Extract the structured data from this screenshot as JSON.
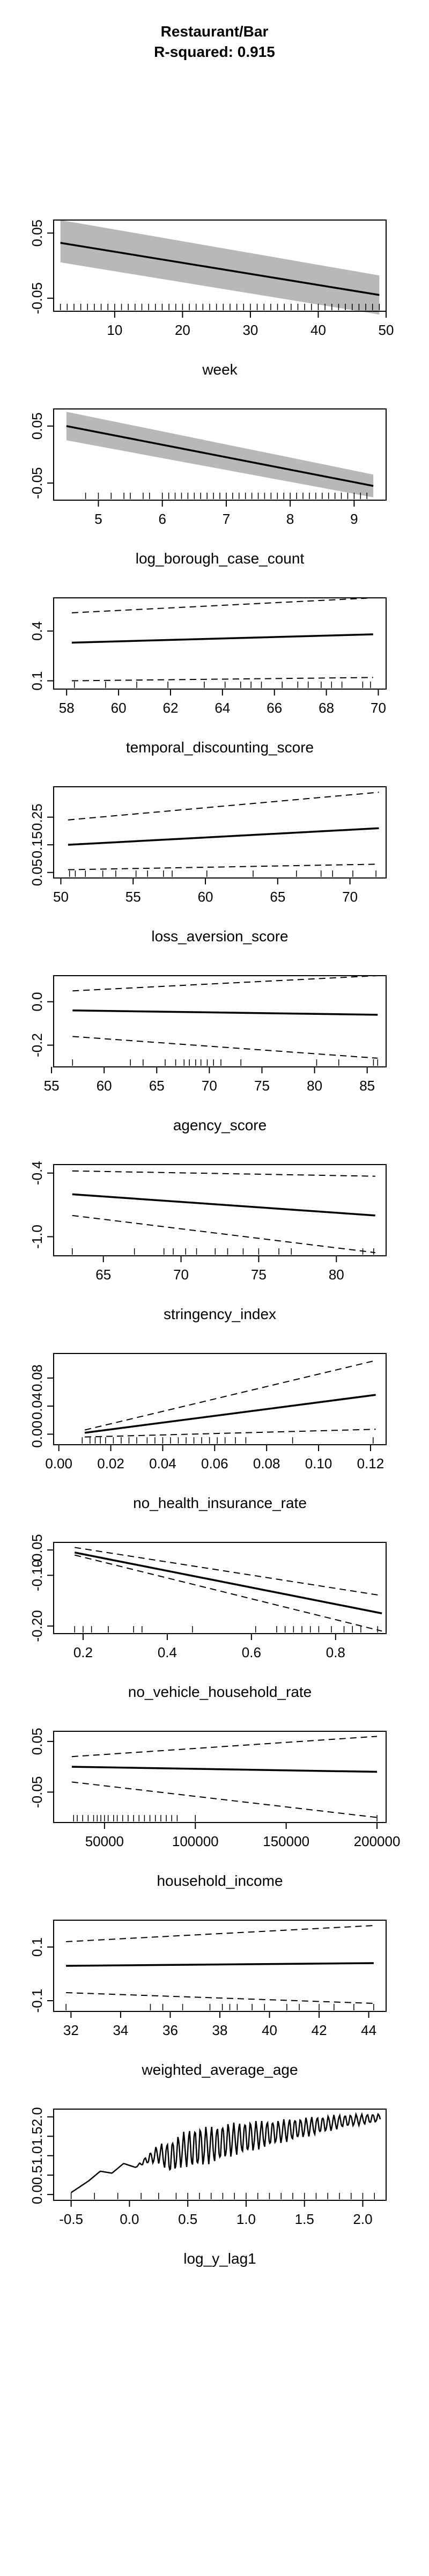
{
  "figure": {
    "title": "Restaurant/Bar",
    "subtitle": "R-squared: 0.915"
  },
  "chart_data": [
    {
      "type": "line",
      "xlabel": "week",
      "ylabel": "",
      "xlim": [
        1,
        50
      ],
      "ylim": [
        -0.07,
        0.07
      ],
      "xticks": [
        10,
        20,
        30,
        40,
        50
      ],
      "yticks": [
        -0.05,
        0.05
      ],
      "x": [
        2,
        49
      ],
      "fit": [
        0.035,
        -0.045
      ],
      "band_lower": [
        0.005,
        -0.075
      ],
      "band_upper": [
        0.07,
        -0.015
      ],
      "band_style": "shaded",
      "rug": [
        2,
        3,
        4,
        5,
        6,
        7,
        8,
        9,
        10,
        11,
        12,
        13,
        14,
        15,
        16,
        17,
        18,
        19,
        20,
        21,
        22,
        23,
        24,
        25,
        26,
        27,
        28,
        29,
        30,
        31,
        32,
        33,
        34,
        35,
        36,
        37,
        38,
        39,
        40,
        41,
        42,
        43,
        44,
        45,
        46,
        47,
        48,
        49
      ]
    },
    {
      "type": "line",
      "xlabel": "log_borough_case_count",
      "ylabel": "",
      "xlim": [
        4.3,
        9.5
      ],
      "ylim": [
        -0.08,
        0.08
      ],
      "xticks": [
        5,
        6,
        7,
        8,
        9
      ],
      "yticks": [
        -0.05,
        0.05
      ],
      "x": [
        4.5,
        9.3
      ],
      "fit": [
        0.05,
        -0.055
      ],
      "band_lower": [
        0.025,
        -0.075
      ],
      "band_upper": [
        0.075,
        -0.035
      ],
      "band_style": "shaded",
      "rug": [
        4.8,
        5.0,
        5.2,
        5.4,
        5.5,
        5.7,
        5.8,
        6.0,
        6.1,
        6.2,
        6.3,
        6.4,
        6.5,
        6.6,
        6.7,
        6.8,
        6.9,
        7.0,
        7.1,
        7.2,
        7.3,
        7.4,
        7.5,
        7.6,
        7.7,
        7.8,
        7.9,
        8.0,
        8.1,
        8.2,
        8.3,
        8.4,
        8.5,
        8.6,
        8.7,
        8.8,
        8.9,
        9.0,
        9.1,
        9.2
      ]
    },
    {
      "type": "line",
      "xlabel": "temporal_discounting_score",
      "ylabel": "",
      "xlim": [
        57.5,
        70.3
      ],
      "ylim": [
        0.05,
        0.6
      ],
      "xticks": [
        58,
        60,
        62,
        64,
        66,
        68,
        70
      ],
      "yticks": [
        0.1,
        0.4
      ],
      "x": [
        58.2,
        69.8
      ],
      "fit": [
        0.33,
        0.38
      ],
      "band_lower": [
        0.1,
        0.12
      ],
      "band_upper": [
        0.51,
        0.6
      ],
      "band_style": "dashed",
      "rug": [
        58.3,
        59.5,
        60.7,
        61.9,
        63.3,
        64.1,
        64.7,
        65.1,
        65.5,
        66.3,
        66.9,
        67.3,
        67.8,
        68.2,
        68.6,
        69.4,
        69.7
      ]
    },
    {
      "type": "line",
      "xlabel": "loss_aversion_score",
      "ylabel": "",
      "xlim": [
        49.5,
        72.5
      ],
      "ylim": [
        0.03,
        0.36
      ],
      "xticks": [
        50,
        55,
        60,
        65,
        70
      ],
      "yticks": [
        0.05,
        0.15,
        0.25
      ],
      "x": [
        50.5,
        72
      ],
      "fit": [
        0.15,
        0.21
      ],
      "band_lower": [
        0.06,
        0.08
      ],
      "band_upper": [
        0.24,
        0.34
      ],
      "band_style": "dashed",
      "rug": [
        50.6,
        51.0,
        51.7,
        52.9,
        53.8,
        55.2,
        56.0,
        57.1,
        57.7,
        60.1,
        63.3,
        66.3,
        68.0,
        68.8,
        70.2,
        71.8
      ]
    },
    {
      "type": "line",
      "xlabel": "agency_score",
      "ylabel": "",
      "xlim": [
        55.2,
        86.8
      ],
      "ylim": [
        -0.3,
        0.12
      ],
      "xticks": [
        55,
        60,
        65,
        70,
        75,
        80,
        85
      ],
      "yticks": [
        -0.2,
        0.0
      ],
      "x": [
        57,
        86
      ],
      "fit": [
        -0.04,
        -0.06
      ],
      "band_lower": [
        -0.16,
        -0.26
      ],
      "band_upper": [
        0.05,
        0.12
      ],
      "band_style": "dashed",
      "rug": [
        57.0,
        62.5,
        63.7,
        65.8,
        66.8,
        67.6,
        68.1,
        68.7,
        69.2,
        69.8,
        70.4,
        71.1,
        73.0,
        80.2,
        82.3,
        85.6,
        86.0
      ]
    },
    {
      "type": "line",
      "xlabel": "stringency_index",
      "ylabel": "",
      "xlim": [
        61.8,
        83.2
      ],
      "ylim": [
        -1.18,
        -0.32
      ],
      "xticks": [
        65,
        70,
        75,
        80
      ],
      "yticks": [
        -1.0,
        -0.4
      ],
      "x": [
        63,
        82.5
      ],
      "fit": [
        -0.6,
        -0.8
      ],
      "band_lower": [
        -0.8,
        -1.15
      ],
      "band_upper": [
        -0.38,
        -0.43
      ],
      "band_style": "dashed",
      "rug": [
        63.0,
        67.0,
        68.9,
        69.5,
        70.3,
        71.0,
        72.2,
        73.0,
        74.0,
        75.0,
        76.3,
        77.1,
        81.7,
        82.4
      ]
    },
    {
      "type": "line",
      "xlabel": "no_health_insurance_rate",
      "ylabel": "",
      "xlim": [
        -0.002,
        0.126
      ],
      "ylim": [
        -0.015,
        0.115
      ],
      "xticks": [
        0.0,
        0.02,
        0.04,
        0.06,
        0.08,
        0.1,
        0.12
      ],
      "yticks": [
        0.0,
        0.04,
        0.08
      ],
      "x": [
        0.01,
        0.122
      ],
      "fit": [
        0.002,
        0.056
      ],
      "band_lower": [
        -0.004,
        0.007
      ],
      "band_upper": [
        0.006,
        0.105
      ],
      "band_style": "dashed",
      "rug": [
        0.009,
        0.012,
        0.014,
        0.016,
        0.018,
        0.021,
        0.024,
        0.027,
        0.03,
        0.034,
        0.037,
        0.04,
        0.043,
        0.046,
        0.049,
        0.052,
        0.055,
        0.058,
        0.061,
        0.064,
        0.068,
        0.072,
        0.09,
        0.121
      ]
    },
    {
      "type": "line",
      "xlabel": "no_vehicle_household_rate",
      "ylabel": "",
      "xlim": [
        0.13,
        0.92
      ],
      "ylim": [
        -0.215,
        -0.035
      ],
      "xticks": [
        0.2,
        0.4,
        0.6,
        0.8
      ],
      "yticks": [
        -0.2,
        -0.1,
        -0.05
      ],
      "x": [
        0.18,
        0.91
      ],
      "fit": [
        -0.055,
        -0.175
      ],
      "band_lower": [
        -0.06,
        -0.21
      ],
      "band_upper": [
        -0.045,
        -0.14
      ],
      "band_style": "dashed",
      "rug": [
        0.18,
        0.2,
        0.22,
        0.26,
        0.32,
        0.34,
        0.46,
        0.61,
        0.66,
        0.68,
        0.7,
        0.72,
        0.74,
        0.76,
        0.79,
        0.82,
        0.84,
        0.86,
        0.9
      ]
    },
    {
      "type": "line",
      "xlabel": "household_income",
      "ylabel": "",
      "xlim": [
        22000,
        205000
      ],
      "ylim": [
        -0.11,
        0.07
      ],
      "xticks": [
        50000,
        100000,
        150000,
        200000
      ],
      "yticks": [
        -0.05,
        0.05
      ],
      "x": [
        32000,
        200000
      ],
      "fit": [
        0.0,
        -0.01
      ],
      "band_lower": [
        -0.03,
        -0.1
      ],
      "band_upper": [
        0.02,
        0.06
      ],
      "band_style": "dashed",
      "rug": [
        33000,
        35000,
        38000,
        41000,
        44000,
        46000,
        48000,
        50000,
        52000,
        55000,
        57000,
        60000,
        63000,
        66000,
        69000,
        72000,
        75000,
        78000,
        81000,
        84000,
        87000,
        90000,
        100000,
        200000
      ]
    },
    {
      "type": "line",
      "xlabel": "weighted_average_age",
      "ylabel": "",
      "xlim": [
        31.3,
        44.7
      ],
      "ylim": [
        -0.14,
        0.2
      ],
      "xticks": [
        32,
        34,
        36,
        38,
        40,
        42,
        44
      ],
      "yticks": [
        -0.1,
        0.1
      ],
      "x": [
        31.8,
        44.2
      ],
      "fit": [
        0.03,
        0.04
      ],
      "band_lower": [
        -0.07,
        -0.11
      ],
      "band_upper": [
        0.12,
        0.18
      ],
      "band_style": "dashed",
      "rug": [
        31.8,
        35.2,
        35.7,
        36.5,
        37.6,
        38.1,
        38.4,
        38.7,
        39.3,
        39.8,
        40.7,
        41.2,
        42.0,
        42.6,
        43.4,
        44.2
      ]
    },
    {
      "type": "line",
      "xlabel": "log_y_lag1",
      "ylabel": "",
      "xlim": [
        -0.65,
        2.2
      ],
      "ylim": [
        -0.15,
        2.2
      ],
      "xticks": [
        -0.5,
        0.0,
        0.5,
        1.0,
        1.5,
        2.0
      ],
      "yticks": [
        0.0,
        0.5,
        1.0,
        1.5,
        2.0
      ],
      "x": [
        -0.5,
        -0.35,
        -0.25,
        -0.15,
        -0.05,
        0.05,
        0.15,
        0.25,
        0.35,
        0.45,
        0.55,
        0.65,
        0.75,
        0.85,
        0.95,
        1.05,
        1.15,
        1.25,
        1.35,
        1.45,
        1.55,
        1.65,
        1.75,
        1.85,
        1.95,
        2.05,
        2.15
      ],
      "fit": [
        0.05,
        0.35,
        0.6,
        0.55,
        0.8,
        0.7,
        0.9,
        1.05,
        0.95,
        1.15,
        1.2,
        1.25,
        1.3,
        1.4,
        1.45,
        1.5,
        1.55,
        1.6,
        1.65,
        1.7,
        1.75,
        1.8,
        1.85,
        1.9,
        1.92,
        1.95,
        1.98
      ],
      "noise_amplitude": [
        0,
        0,
        0,
        0,
        0,
        0,
        0.1,
        0.25,
        0.4,
        0.45,
        0.5,
        0.5,
        0.45,
        0.45,
        0.4,
        0.4,
        0.35,
        0.3,
        0.3,
        0.25,
        0.25,
        0.2,
        0.2,
        0.15,
        0.15,
        0.12,
        0.1
      ],
      "band_style": "none",
      "rug": [
        -0.5,
        -0.3,
        -0.1,
        0.1,
        0.25,
        0.4,
        0.5,
        0.6,
        0.7,
        0.8,
        0.9,
        1.0,
        1.1,
        1.2,
        1.3,
        1.4,
        1.5,
        1.6,
        1.7,
        1.8,
        1.9,
        2.0,
        2.1
      ]
    }
  ]
}
